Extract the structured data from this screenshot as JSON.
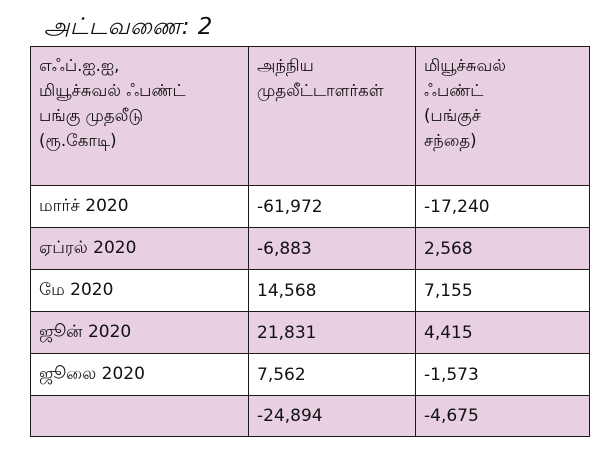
{
  "caption": "அட்டவணை: 2",
  "header": {
    "col1_lines": [
      "எஃப்.ஐ.ஐ,",
      "மியூச்சுவல் ஃபண்ட்",
      "பங்கு முதலீடு",
      "(ரூ.கோடி)"
    ],
    "col2_lines": [
      "அந்நிய",
      "முதலீட்டாளர்கள்"
    ],
    "col3_lines": [
      "மியூச்சுவல்",
      "ஃபண்ட்",
      "(பங்குச்",
      "சந்தை)"
    ]
  },
  "rows": [
    {
      "month": "மார்ச் 2020",
      "foreign": "-61,972",
      "mutual": "-17,240"
    },
    {
      "month": "ஏப்ரல் 2020",
      "foreign": "-6,883",
      "mutual": "2,568"
    },
    {
      "month": "மே 2020",
      "foreign": "14,568",
      "mutual": "7,155"
    },
    {
      "month": "ஜூன் 2020",
      "foreign": "21,831",
      "mutual": "4,415"
    },
    {
      "month": "ஜூலை 2020",
      "foreign": "7,562",
      "mutual": "-1,573"
    }
  ],
  "total": {
    "month": "",
    "foreign": "-24,894",
    "mutual": "-4,675"
  },
  "colors": {
    "pink": "#e8cfe1",
    "white": "#ffffff",
    "border": "#1a1a1a"
  }
}
